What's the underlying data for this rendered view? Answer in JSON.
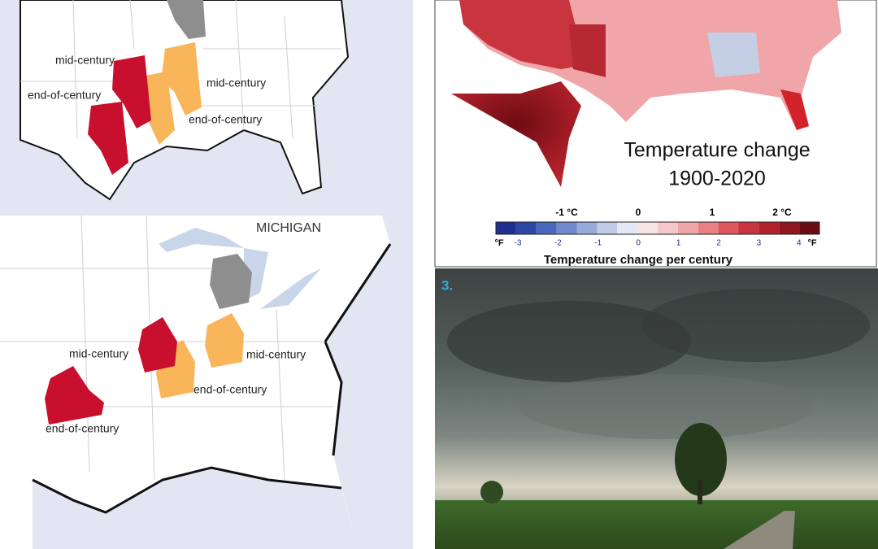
{
  "illinois_panel": {
    "labels": [
      "mid-century",
      "end-of-century",
      "mid-century",
      "end-of-century"
    ]
  },
  "michigan_panel": {
    "state": "MICHIGAN",
    "labels": [
      "mid-century",
      "mid-century",
      "end-of-century",
      "end-of-century"
    ]
  },
  "temperature_map": {
    "title": "Temperature change",
    "period": "1900-2020",
    "celsius_ticks": [
      "-1 °C",
      "0",
      "1",
      "2 °C"
    ],
    "fahrenheit_unit": "°F",
    "fahrenheit_ticks": [
      "-3",
      "-2",
      "-1",
      "0",
      "1",
      "2",
      "3",
      "4"
    ],
    "axis_label": "Temperature change per century"
  },
  "photo": {
    "label": "3."
  }
}
